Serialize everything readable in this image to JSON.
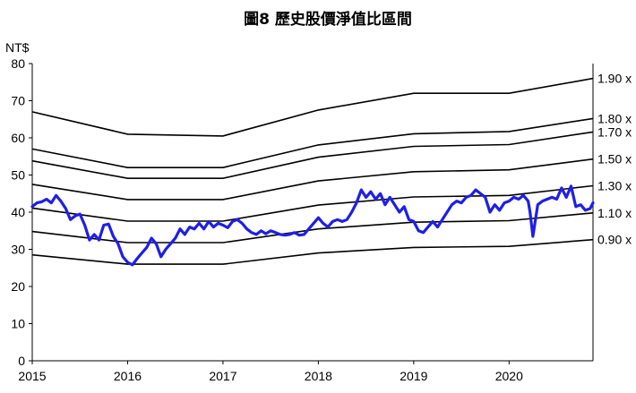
{
  "chart_data": {
    "type": "line",
    "title": "圖8 歷史股價淨值比區間",
    "ylabel": "NT$",
    "ylim": [
      0,
      80
    ],
    "yticks": [
      0,
      10,
      20,
      30,
      40,
      50,
      60,
      70,
      80
    ],
    "xlim": [
      2015,
      2020.88
    ],
    "xticks": [
      "2015",
      "2016",
      "2017",
      "2018",
      "2019",
      "2020"
    ],
    "grid": false,
    "band_x": [
      2015.0,
      2016.0,
      2017.0,
      2018.0,
      2019.0,
      2020.0,
      2020.88
    ],
    "series": [
      {
        "name": "0.90 x",
        "kind": "band",
        "color": "#000000",
        "values": [
          28.5,
          26.0,
          26.0,
          29.0,
          30.5,
          30.8,
          32.6
        ]
      },
      {
        "name": "1.10 x",
        "kind": "band",
        "color": "#000000",
        "values": [
          34.8,
          31.8,
          31.8,
          35.5,
          37.3,
          37.7,
          39.8
        ]
      },
      {
        "name": "1.30 x",
        "kind": "band",
        "color": "#000000",
        "values": [
          41.1,
          37.6,
          37.6,
          41.9,
          44.1,
          44.5,
          47.1
        ]
      },
      {
        "name": "1.50 x",
        "kind": "band",
        "color": "#000000",
        "values": [
          47.5,
          43.4,
          43.4,
          48.4,
          50.9,
          51.4,
          54.3
        ]
      },
      {
        "name": "1.70 x",
        "kind": "band",
        "color": "#000000",
        "values": [
          53.8,
          49.1,
          49.1,
          54.8,
          57.7,
          58.2,
          61.6
        ]
      },
      {
        "name": "1.80 x",
        "kind": "band",
        "color": "#000000",
        "values": [
          57.0,
          52.0,
          52.0,
          58.1,
          61.1,
          61.7,
          65.2
        ]
      },
      {
        "name": "1.90 x",
        "kind": "band",
        "color": "#000000",
        "values": [
          67.0,
          61.0,
          60.5,
          67.5,
          72.0,
          72.0,
          76.0
        ]
      },
      {
        "name": "",
        "kind": "price",
        "color": "#1f1fe6",
        "x": [
          2015.0,
          2015.05,
          2015.1,
          2015.15,
          2015.2,
          2015.25,
          2015.3,
          2015.35,
          2015.4,
          2015.45,
          2015.5,
          2015.55,
          2015.6,
          2015.65,
          2015.7,
          2015.75,
          2015.8,
          2015.85,
          2015.9,
          2015.95,
          2016.0,
          2016.05,
          2016.1,
          2016.15,
          2016.2,
          2016.25,
          2016.3,
          2016.35,
          2016.4,
          2016.45,
          2016.5,
          2016.55,
          2016.6,
          2016.65,
          2016.7,
          2016.75,
          2016.8,
          2016.85,
          2016.9,
          2016.95,
          2017.0,
          2017.05,
          2017.1,
          2017.15,
          2017.2,
          2017.25,
          2017.3,
          2017.35,
          2017.4,
          2017.45,
          2017.5,
          2017.55,
          2017.6,
          2017.65,
          2017.7,
          2017.75,
          2017.8,
          2017.85,
          2017.9,
          2017.95,
          2018.0,
          2018.05,
          2018.1,
          2018.15,
          2018.2,
          2018.25,
          2018.3,
          2018.35,
          2018.4,
          2018.45,
          2018.5,
          2018.55,
          2018.6,
          2018.65,
          2018.7,
          2018.75,
          2018.8,
          2018.85,
          2018.9,
          2018.95,
          2019.0,
          2019.05,
          2019.1,
          2019.15,
          2019.2,
          2019.25,
          2019.3,
          2019.35,
          2019.4,
          2019.45,
          2019.5,
          2019.55,
          2019.6,
          2019.65,
          2019.7,
          2019.75,
          2019.8,
          2019.85,
          2019.9,
          2019.95,
          2020.0,
          2020.05,
          2020.1,
          2020.15,
          2020.2,
          2020.22,
          2020.25,
          2020.3,
          2020.35,
          2020.4,
          2020.45,
          2020.5,
          2020.55,
          2020.6,
          2020.65,
          2020.7,
          2020.75,
          2020.8,
          2020.85,
          2020.88
        ],
        "values": [
          41.5,
          42.5,
          42.8,
          43.5,
          42.5,
          44.5,
          43.0,
          41.0,
          38.0,
          39.0,
          39.5,
          36.5,
          32.5,
          34.0,
          32.5,
          36.5,
          36.8,
          33.5,
          31.5,
          28.0,
          26.5,
          25.8,
          27.5,
          29.0,
          30.5,
          33.0,
          31.5,
          28.0,
          30.0,
          31.5,
          33.0,
          35.5,
          34.0,
          36.0,
          35.5,
          37.0,
          35.5,
          37.5,
          36.0,
          37.0,
          36.5,
          35.8,
          37.5,
          38.0,
          37.0,
          35.5,
          34.5,
          34.0,
          35.0,
          34.2,
          35.0,
          34.5,
          34.0,
          33.8,
          34.0,
          34.5,
          33.8,
          34.0,
          35.5,
          37.0,
          38.5,
          37.0,
          36.0,
          37.5,
          38.0,
          37.5,
          38.0,
          40.0,
          42.5,
          46.0,
          44.0,
          45.5,
          43.5,
          45.0,
          42.0,
          44.0,
          42.0,
          40.0,
          41.5,
          38.0,
          37.5,
          35.0,
          34.5,
          36.0,
          37.5,
          36.0,
          38.0,
          40.0,
          42.0,
          43.0,
          42.5,
          44.0,
          44.5,
          46.0,
          45.0,
          44.0,
          40.0,
          42.0,
          40.5,
          42.5,
          43.0,
          44.0,
          43.5,
          44.5,
          43.0,
          40.0,
          33.5,
          42.0,
          43.0,
          43.5,
          44.0,
          43.5,
          46.5,
          44.0,
          47.0,
          41.5,
          42.0,
          40.5,
          41.0,
          42.5
        ]
      }
    ]
  }
}
